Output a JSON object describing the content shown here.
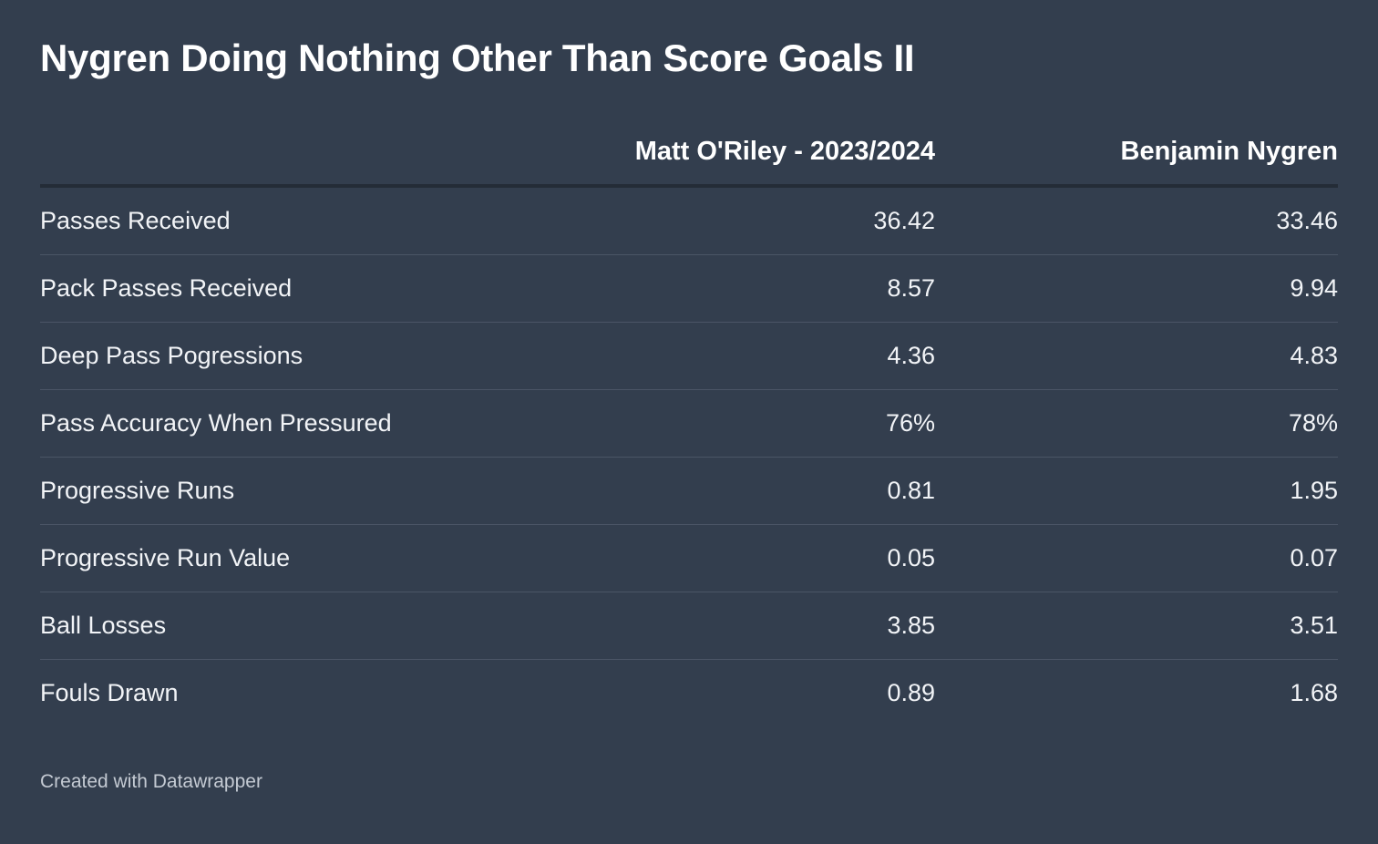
{
  "chart_data": {
    "type": "table",
    "title": "Nygren Doing Nothing Other Than Score Goals II",
    "columns": [
      "",
      "Matt O'Riley - 2023/2024",
      "Benjamin Nygren"
    ],
    "rows": [
      {
        "label": "Passes Received",
        "values": [
          "36.42",
          "33.46"
        ]
      },
      {
        "label": "Pack Passes Received",
        "values": [
          "8.57",
          "9.94"
        ]
      },
      {
        "label": "Deep Pass Pogressions",
        "values": [
          "4.36",
          "4.83"
        ]
      },
      {
        "label": "Pass Accuracy When Pressured",
        "values": [
          "76%",
          "78%"
        ]
      },
      {
        "label": "Progressive Runs",
        "values": [
          "0.81",
          "1.95"
        ]
      },
      {
        "label": "Progressive Run Value",
        "values": [
          "0.05",
          "0.07"
        ]
      },
      {
        "label": "Ball Losses",
        "values": [
          "3.85",
          "3.51"
        ]
      },
      {
        "label": "Fouls Drawn",
        "values": [
          "0.89",
          "1.68"
        ]
      }
    ]
  },
  "footer": {
    "credit": "Created with Datawrapper"
  },
  "colors": {
    "background": "#333e4e",
    "header_rule": "#242c37",
    "row_rule": "#4b5566",
    "text": "#ffffff",
    "credit_text": "#c4cad3"
  }
}
